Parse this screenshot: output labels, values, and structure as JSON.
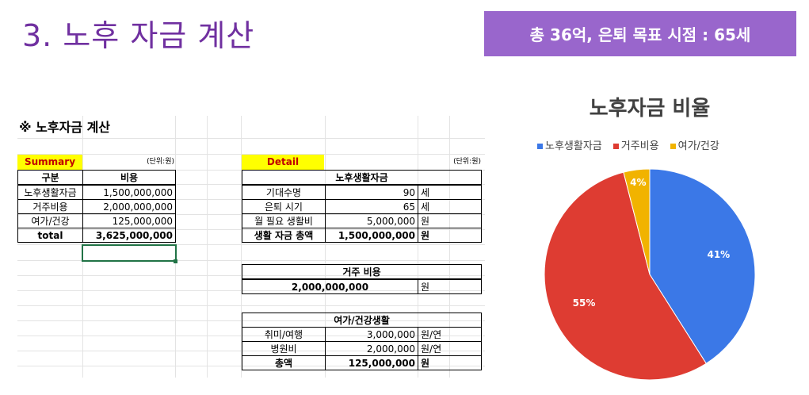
{
  "slide": {
    "title": "3. 노후 자금 계산",
    "goal": "총 36억, 은퇴 목표 시점 : 65세"
  },
  "sheet": {
    "heading": "※ 노후자금 계산",
    "summary": {
      "label": "Summary",
      "unit": "(단위:원)",
      "col_category": "구분",
      "col_cost": "비용",
      "rows": [
        {
          "name": "노후생활자금",
          "value": "1,500,000,000"
        },
        {
          "name": "거주비용",
          "value": "2,000,000,000"
        },
        {
          "name": "여가/건강",
          "value": "125,000,000"
        }
      ],
      "total_label": "total",
      "total_value": "3,625,000,000"
    },
    "detail": {
      "label": "Detail",
      "unit": "(단위:원)",
      "living": {
        "header": "노후생활자금",
        "rows": [
          {
            "name": "기대수명",
            "value": "90",
            "unit": "세"
          },
          {
            "name": "은퇴 시기",
            "value": "65",
            "unit": "세"
          },
          {
            "name": "월 필요 생활비",
            "value": "5,000,000",
            "unit": "원"
          },
          {
            "name": "생활 자금 총액",
            "value": "1,500,000,000",
            "unit": "원"
          }
        ]
      },
      "housing": {
        "header": "거주 비용",
        "value": "2,000,000,000",
        "unit": "원"
      },
      "leisure": {
        "header": "여가/건강생활",
        "rows": [
          {
            "name": "취미/여행",
            "value": "3,000,000",
            "unit": "원/연"
          },
          {
            "name": "병원비",
            "value": "2,000,000",
            "unit": "원/연"
          },
          {
            "name": "총액",
            "value": "125,000,000",
            "unit": "원"
          }
        ]
      }
    }
  },
  "chart_data": {
    "type": "pie",
    "title": "노후자금 비율",
    "categories": [
      "노후생활자금",
      "거주비용",
      "여가/건강"
    ],
    "values": [
      41,
      55,
      4
    ],
    "labels": [
      "41%",
      "55%",
      "4%"
    ],
    "colors": [
      "#3b78e7",
      "#de3c32",
      "#f1b300"
    ],
    "legend": "top"
  }
}
